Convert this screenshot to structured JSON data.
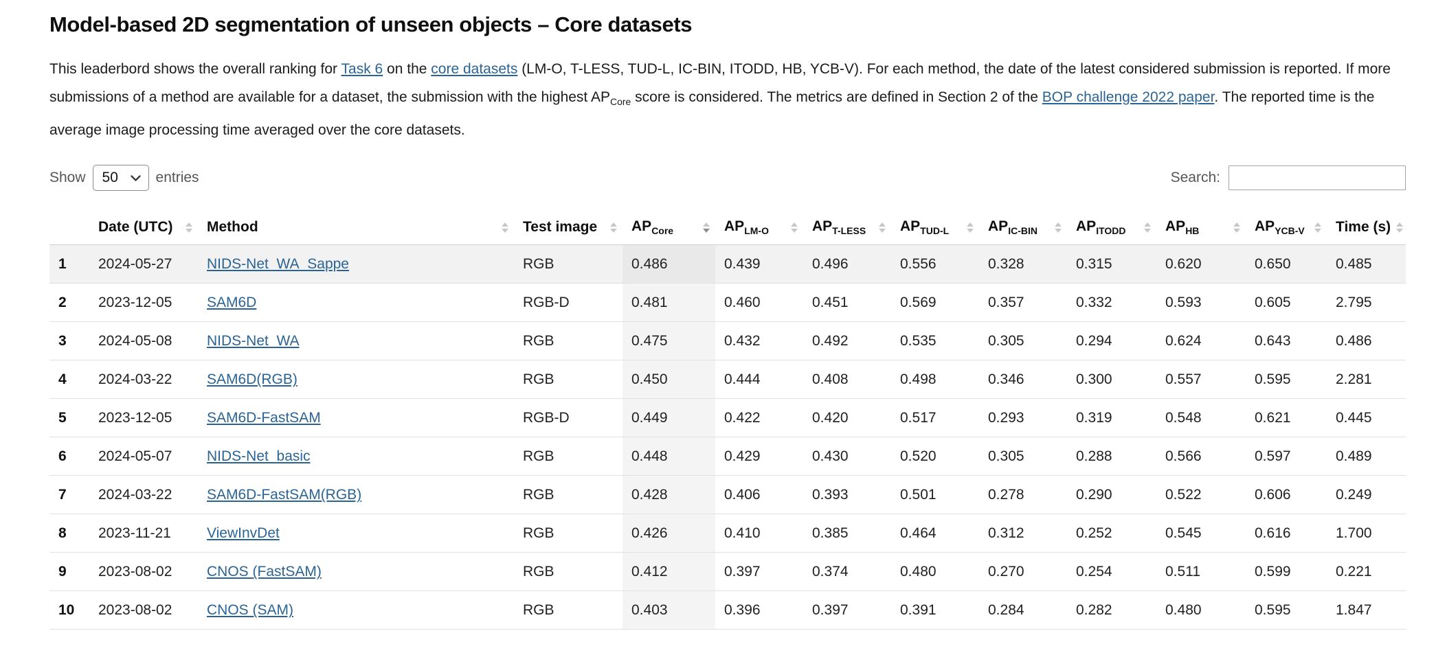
{
  "colors": {
    "link_blue": "#2a6496",
    "sorted_column_bg": "#f4f4f4",
    "row_hover_bg": "#f2f2f2",
    "hover_sorted_bg": "#e9e9e9"
  },
  "page": {
    "title": "Model-based 2D segmentation of unseen objects – Core datasets"
  },
  "description": {
    "segments": [
      {
        "text": "This leaderbord shows the overall ranking for "
      },
      {
        "text": "Task 6",
        "link": true
      },
      {
        "text": " on the "
      },
      {
        "text": "core datasets",
        "link": true
      },
      {
        "text": " (LM-O, T-LESS, TUD-L, IC-BIN, ITODD, HB, YCB-V). For each method, the date of the latest considered submission is reported. If more submissions of a method are available for a dataset, the submission with the highest AP"
      },
      {
        "text": "Core",
        "subscript": true
      },
      {
        "text": " score is considered. The metrics are defined in Section 2 of the "
      },
      {
        "text": "BOP challenge 2022 paper",
        "link": true
      },
      {
        "text": ". The reported time is the average image processing time averaged over the core datasets."
      }
    ]
  },
  "controls": {
    "show_label": "Show",
    "entries_label": "entries",
    "page_length_value": "50",
    "search_label": "Search:",
    "search_value": ""
  },
  "table": {
    "columns": [
      {
        "key": "rank",
        "label": "",
        "sortable": false
      },
      {
        "key": "date",
        "label": "Date (UTC)"
      },
      {
        "key": "method",
        "label": "Method"
      },
      {
        "key": "test_image",
        "label": "Test image"
      },
      {
        "key": "ap_core",
        "label": "AP",
        "sub": "Core",
        "sorted": "desc"
      },
      {
        "key": "ap_lmo",
        "label": "AP",
        "sub": "LM-O"
      },
      {
        "key": "ap_tless",
        "label": "AP",
        "sub": "T-LESS"
      },
      {
        "key": "ap_tudl",
        "label": "AP",
        "sub": "TUD-L"
      },
      {
        "key": "ap_icbin",
        "label": "AP",
        "sub": "IC-BIN"
      },
      {
        "key": "ap_itodd",
        "label": "AP",
        "sub": "ITODD"
      },
      {
        "key": "ap_hb",
        "label": "AP",
        "sub": "HB"
      },
      {
        "key": "ap_ycbv",
        "label": "AP",
        "sub": "YCB-V"
      },
      {
        "key": "time",
        "label": "Time (s)"
      }
    ],
    "rows": [
      {
        "rank": "1",
        "date": "2024-05-27",
        "method": "NIDS-Net_WA_Sappe",
        "test_image": "RGB",
        "ap_core": "0.486",
        "ap_lmo": "0.439",
        "ap_tless": "0.496",
        "ap_tudl": "0.556",
        "ap_icbin": "0.328",
        "ap_itodd": "0.315",
        "ap_hb": "0.620",
        "ap_ycbv": "0.650",
        "time": "0.485",
        "hovered": true
      },
      {
        "rank": "2",
        "date": "2023-12-05",
        "method": "SAM6D",
        "test_image": "RGB-D",
        "ap_core": "0.481",
        "ap_lmo": "0.460",
        "ap_tless": "0.451",
        "ap_tudl": "0.569",
        "ap_icbin": "0.357",
        "ap_itodd": "0.332",
        "ap_hb": "0.593",
        "ap_ycbv": "0.605",
        "time": "2.795"
      },
      {
        "rank": "3",
        "date": "2024-05-08",
        "method": "NIDS-Net_WA",
        "test_image": "RGB",
        "ap_core": "0.475",
        "ap_lmo": "0.432",
        "ap_tless": "0.492",
        "ap_tudl": "0.535",
        "ap_icbin": "0.305",
        "ap_itodd": "0.294",
        "ap_hb": "0.624",
        "ap_ycbv": "0.643",
        "time": "0.486"
      },
      {
        "rank": "4",
        "date": "2024-03-22",
        "method": "SAM6D(RGB)",
        "test_image": "RGB",
        "ap_core": "0.450",
        "ap_lmo": "0.444",
        "ap_tless": "0.408",
        "ap_tudl": "0.498",
        "ap_icbin": "0.346",
        "ap_itodd": "0.300",
        "ap_hb": "0.557",
        "ap_ycbv": "0.595",
        "time": "2.281"
      },
      {
        "rank": "5",
        "date": "2023-12-05",
        "method": "SAM6D-FastSAM",
        "test_image": "RGB-D",
        "ap_core": "0.449",
        "ap_lmo": "0.422",
        "ap_tless": "0.420",
        "ap_tudl": "0.517",
        "ap_icbin": "0.293",
        "ap_itodd": "0.319",
        "ap_hb": "0.548",
        "ap_ycbv": "0.621",
        "time": "0.445"
      },
      {
        "rank": "6",
        "date": "2024-05-07",
        "method": "NIDS-Net_basic",
        "test_image": "RGB",
        "ap_core": "0.448",
        "ap_lmo": "0.429",
        "ap_tless": "0.430",
        "ap_tudl": "0.520",
        "ap_icbin": "0.305",
        "ap_itodd": "0.288",
        "ap_hb": "0.566",
        "ap_ycbv": "0.597",
        "time": "0.489"
      },
      {
        "rank": "7",
        "date": "2024-03-22",
        "method": "SAM6D-FastSAM(RGB)",
        "test_image": "RGB",
        "ap_core": "0.428",
        "ap_lmo": "0.406",
        "ap_tless": "0.393",
        "ap_tudl": "0.501",
        "ap_icbin": "0.278",
        "ap_itodd": "0.290",
        "ap_hb": "0.522",
        "ap_ycbv": "0.606",
        "time": "0.249"
      },
      {
        "rank": "8",
        "date": "2023-11-21",
        "method": "ViewInvDet",
        "test_image": "RGB",
        "ap_core": "0.426",
        "ap_lmo": "0.410",
        "ap_tless": "0.385",
        "ap_tudl": "0.464",
        "ap_icbin": "0.312",
        "ap_itodd": "0.252",
        "ap_hb": "0.545",
        "ap_ycbv": "0.616",
        "time": "1.700"
      },
      {
        "rank": "9",
        "date": "2023-08-02",
        "method": "CNOS (FastSAM)",
        "test_image": "RGB",
        "ap_core": "0.412",
        "ap_lmo": "0.397",
        "ap_tless": "0.374",
        "ap_tudl": "0.480",
        "ap_icbin": "0.270",
        "ap_itodd": "0.254",
        "ap_hb": "0.511",
        "ap_ycbv": "0.599",
        "time": "0.221"
      },
      {
        "rank": "10",
        "date": "2023-08-02",
        "method": "CNOS (SAM)",
        "test_image": "RGB",
        "ap_core": "0.403",
        "ap_lmo": "0.396",
        "ap_tless": "0.397",
        "ap_tudl": "0.391",
        "ap_icbin": "0.284",
        "ap_itodd": "0.282",
        "ap_hb": "0.480",
        "ap_ycbv": "0.595",
        "time": "1.847"
      }
    ]
  }
}
